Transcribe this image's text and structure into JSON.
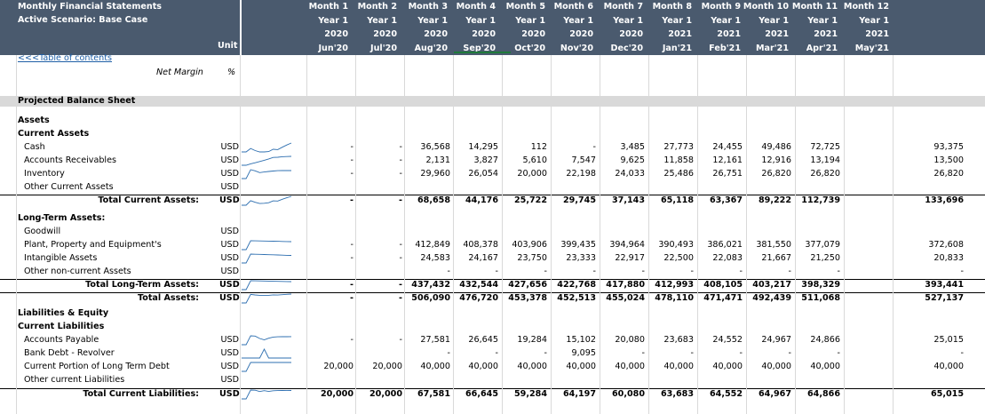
{
  "header": {
    "title": "Monthly Financial Statements",
    "scenario": "Active Scenario: Base Case",
    "unit_label": "Unit",
    "months": [
      {
        "m": "Month 1",
        "y": "Year 1",
        "yr": "2020",
        "d": "Jun'20"
      },
      {
        "m": "Month 2",
        "y": "Year 1",
        "yr": "2020",
        "d": "Jul'20"
      },
      {
        "m": "Month 3",
        "y": "Year 1",
        "yr": "2020",
        "d": "Aug'20"
      },
      {
        "m": "Month 4",
        "y": "Year 1",
        "yr": "2020",
        "d": "Sep'20"
      },
      {
        "m": "Month 5",
        "y": "Year 1",
        "yr": "2020",
        "d": "Oct'20"
      },
      {
        "m": "Month 6",
        "y": "Year 1",
        "yr": "2020",
        "d": "Nov'20"
      },
      {
        "m": "Month 7",
        "y": "Year 1",
        "yr": "2020",
        "d": "Dec'20"
      },
      {
        "m": "Month 8",
        "y": "Year 1",
        "yr": "2021",
        "d": "Jan'21"
      },
      {
        "m": "Month 9",
        "y": "Year 1",
        "yr": "2021",
        "d": "Feb'21"
      },
      {
        "m": "Month 10",
        "y": "Year 1",
        "yr": "2021",
        "d": "Mar'21"
      },
      {
        "m": "Month 11",
        "y": "Year 1",
        "yr": "2021",
        "d": "Apr'21"
      },
      {
        "m": "Month 12",
        "y": "Year 1",
        "yr": "2021",
        "d": "May'21"
      }
    ]
  },
  "toc_link": "<<<Table of contents",
  "net_margin": {
    "label": "Net Margin",
    "unit": "%"
  },
  "section_title": "Projected Balance Sheet",
  "colors": {
    "header_bg": "#4a5a6e",
    "section_bg": "#d9d9d9",
    "link": "#1f5fa6",
    "spark": "#2e6fb0",
    "selected_underline": "#1f7a3b"
  },
  "rows": [
    {
      "label": "Assets",
      "style": "bold",
      "unit": "",
      "spark": false,
      "values": []
    },
    {
      "label": "Current Assets",
      "style": "bold",
      "unit": "",
      "spark": false,
      "values": []
    },
    {
      "label": "Cash",
      "style": "item",
      "unit": "USD",
      "spark": true,
      "values": [
        "-",
        "-",
        "36,568",
        "14,295",
        "112",
        "-",
        "3,485",
        "27,773",
        "24,455",
        "49,486",
        "72,725",
        "93,375"
      ]
    },
    {
      "label": "Accounts Receivables",
      "style": "item",
      "unit": "USD",
      "spark": true,
      "values": [
        "-",
        "-",
        "2,131",
        "3,827",
        "5,610",
        "7,547",
        "9,625",
        "11,858",
        "12,161",
        "12,916",
        "13,194",
        "13,500"
      ]
    },
    {
      "label": "Inventory",
      "style": "item",
      "unit": "USD",
      "spark": true,
      "values": [
        "-",
        "-",
        "29,960",
        "26,054",
        "20,000",
        "22,198",
        "24,033",
        "25,486",
        "26,751",
        "26,820",
        "26,820",
        "26,820"
      ]
    },
    {
      "label": "Other Current Assets",
      "style": "item",
      "unit": "USD",
      "spark": false,
      "values": []
    },
    {
      "label": "Total Current Assets:",
      "style": "total",
      "unit": "USD",
      "spark": true,
      "values": [
        "-",
        "-",
        "68,658",
        "44,176",
        "25,722",
        "29,745",
        "37,143",
        "65,118",
        "63,367",
        "89,222",
        "112,739",
        "133,696"
      ]
    },
    {
      "label": "Long-Term Assets:",
      "style": "bold",
      "unit": "",
      "spark": false,
      "values": []
    },
    {
      "label": "Goodwill",
      "style": "item",
      "unit": "USD",
      "spark": false,
      "values": []
    },
    {
      "label": "Plant, Property and Equipment's",
      "style": "item",
      "unit": "USD",
      "spark": true,
      "values": [
        "-",
        "-",
        "412,849",
        "408,378",
        "403,906",
        "399,435",
        "394,964",
        "390,493",
        "386,021",
        "381,550",
        "377,079",
        "372,608"
      ]
    },
    {
      "label": "Intangible Assets",
      "style": "item",
      "unit": "USD",
      "spark": true,
      "values": [
        "-",
        "-",
        "24,583",
        "24,167",
        "23,750",
        "23,333",
        "22,917",
        "22,500",
        "22,083",
        "21,667",
        "21,250",
        "20,833"
      ]
    },
    {
      "label": "Other non-current Assets",
      "style": "item",
      "unit": "USD",
      "spark": false,
      "values": [
        "",
        "",
        "-",
        "-",
        "-",
        "-",
        "-",
        "-",
        "-",
        "-",
        "-",
        "-"
      ]
    },
    {
      "label": "Total Long-Term Assets:",
      "style": "total",
      "unit": "USD",
      "spark": true,
      "values": [
        "-",
        "-",
        "437,432",
        "432,544",
        "427,656",
        "422,768",
        "417,880",
        "412,993",
        "408,105",
        "403,217",
        "398,329",
        "393,441"
      ]
    },
    {
      "label": "Total Assets:",
      "style": "total",
      "unit": "USD",
      "spark": true,
      "values": [
        "-",
        "-",
        "506,090",
        "476,720",
        "453,378",
        "452,513",
        "455,024",
        "478,110",
        "471,471",
        "492,439",
        "511,068",
        "527,137"
      ]
    },
    {
      "label": "Liabilities & Equity",
      "style": "bold",
      "unit": "",
      "spark": false,
      "values": []
    },
    {
      "label": "Current Liabilities",
      "style": "bold",
      "unit": "",
      "spark": false,
      "values": []
    },
    {
      "label": "Accounts Payable",
      "style": "item",
      "unit": "USD",
      "spark": true,
      "values": [
        "-",
        "-",
        "27,581",
        "26,645",
        "19,284",
        "15,102",
        "20,080",
        "23,683",
        "24,552",
        "24,967",
        "24,866",
        "25,015"
      ]
    },
    {
      "label": "Bank Debt - Revolver",
      "style": "item",
      "unit": "USD",
      "spark": true,
      "values": [
        "",
        "",
        "-",
        "-",
        "-",
        "9,095",
        "-",
        "-",
        "-",
        "-",
        "-",
        "-"
      ]
    },
    {
      "label": "Current Portion of Long Term Debt",
      "style": "item",
      "unit": "USD",
      "spark": true,
      "values": [
        "20,000",
        "20,000",
        "40,000",
        "40,000",
        "40,000",
        "40,000",
        "40,000",
        "40,000",
        "40,000",
        "40,000",
        "40,000",
        "40,000"
      ]
    },
    {
      "label": "Other current Liabilities",
      "style": "item",
      "unit": "USD",
      "spark": false,
      "values": []
    },
    {
      "label": "Total Current Liabilities:",
      "style": "total",
      "unit": "USD",
      "spark": true,
      "values": [
        "20,000",
        "20,000",
        "67,581",
        "66,645",
        "59,284",
        "64,197",
        "60,080",
        "63,683",
        "64,552",
        "64,967",
        "64,866",
        "65,015"
      ]
    }
  ]
}
